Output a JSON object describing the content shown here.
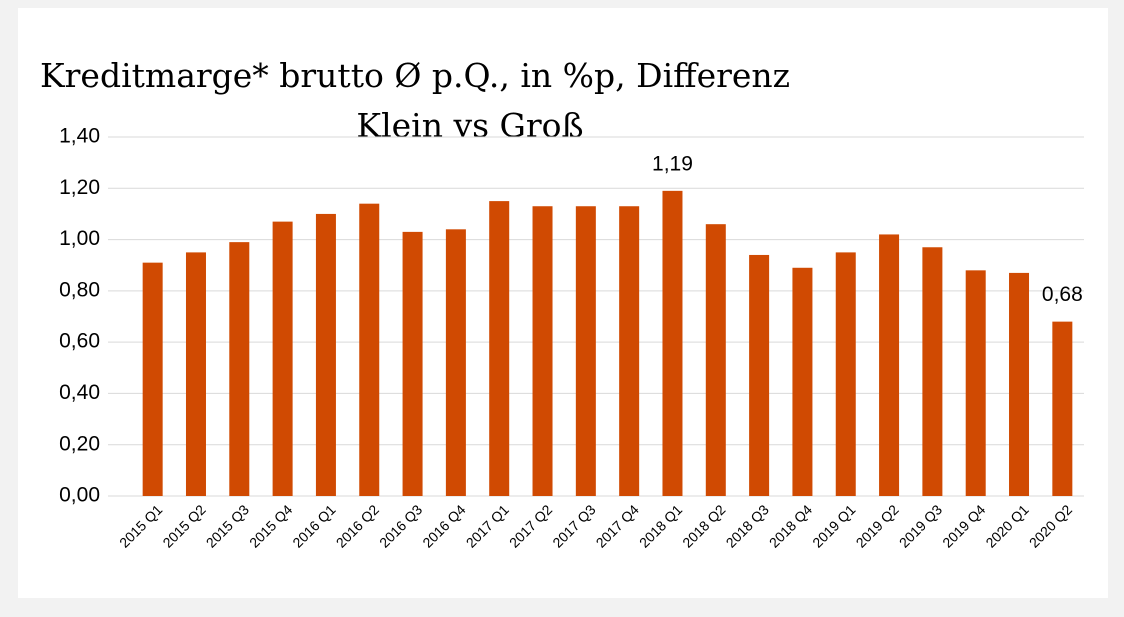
{
  "chart_data": {
    "type": "bar",
    "title": [
      "Kreditmarge* brutto Ø p.Q., in %p, Differenz",
      "Klein vs Groß"
    ],
    "categories": [
      "2015 Q1",
      "2015 Q2",
      "2015 Q3",
      "2015 Q4",
      "2016 Q1",
      "2016 Q2",
      "2016 Q3",
      "2016 Q4",
      "2017 Q1",
      "2017 Q2",
      "2017 Q3",
      "2017 Q4",
      "2018 Q1",
      "2018 Q2",
      "2018 Q3",
      "2018 Q4",
      "2019 Q1",
      "2019 Q2",
      "2019 Q3",
      "2019 Q4",
      "2020 Q1",
      "2020 Q2"
    ],
    "values": [
      0.91,
      0.95,
      0.99,
      1.07,
      1.1,
      1.14,
      1.03,
      1.04,
      1.15,
      1.13,
      1.13,
      1.13,
      1.19,
      1.06,
      0.94,
      0.89,
      0.95,
      1.02,
      0.97,
      0.88,
      0.87,
      0.68
    ],
    "value_labels": [
      null,
      null,
      null,
      null,
      null,
      null,
      null,
      null,
      null,
      null,
      null,
      null,
      "1,19",
      null,
      null,
      null,
      null,
      null,
      null,
      null,
      null,
      "0,68"
    ],
    "color": "#d04a02",
    "ylim": [
      0,
      1.4
    ],
    "yticks": [
      {
        "value": 0,
        "label": "0,00"
      },
      {
        "value": 0.2,
        "label": "0,20"
      },
      {
        "value": 0.4,
        "label": "0,40"
      },
      {
        "value": 0.6,
        "label": "0,60"
      },
      {
        "value": 0.8,
        "label": "0,80"
      },
      {
        "value": 1.0,
        "label": "1,00"
      },
      {
        "value": 1.2,
        "label": "1,20"
      },
      {
        "value": 1.4,
        "label": "1,40"
      }
    ],
    "grid": true
  }
}
